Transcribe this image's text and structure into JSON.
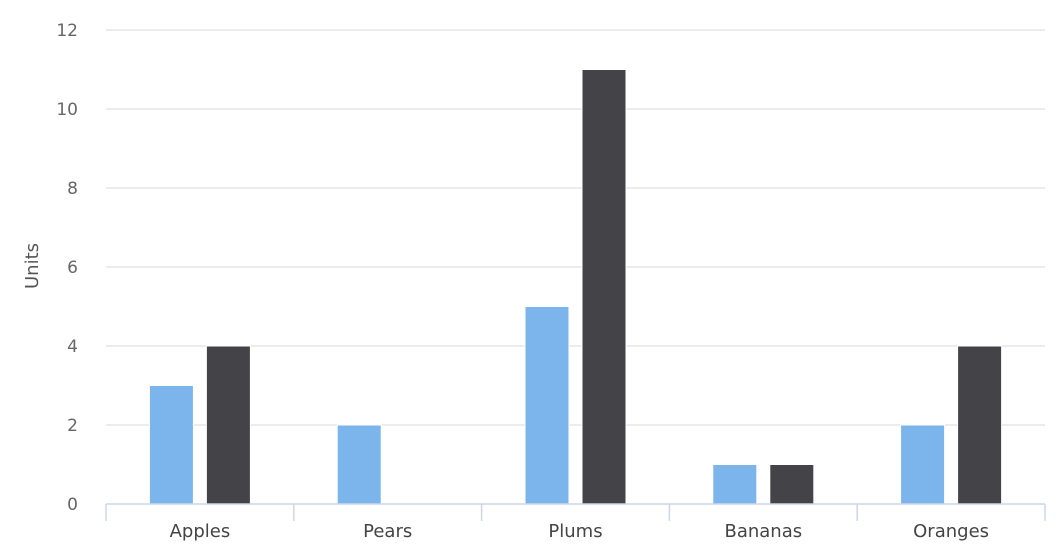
{
  "chart_data": {
    "type": "bar",
    "title": "",
    "xlabel": "",
    "ylabel": "Units",
    "ylim": [
      0,
      12
    ],
    "ytick_step": 2,
    "grid": true,
    "legend": "none",
    "categories": [
      "Apples",
      "Pears",
      "Plums",
      "Bananas",
      "Oranges"
    ],
    "series": [
      {
        "color": "#7cb5ec",
        "values": [
          3,
          2,
          5,
          1,
          2
        ]
      },
      {
        "color": "#434348",
        "values": [
          4,
          0,
          11,
          1,
          4
        ]
      }
    ]
  }
}
